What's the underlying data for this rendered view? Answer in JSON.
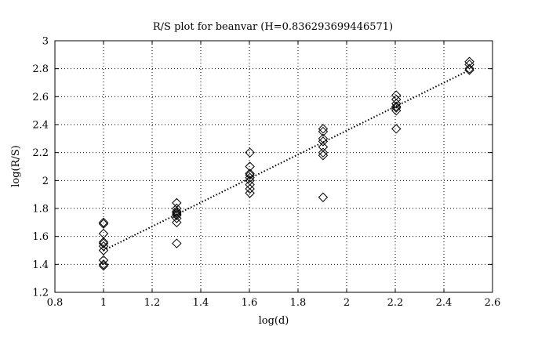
{
  "chart_data": {
    "type": "scatter",
    "title": "R/S plot for beanvar (H=0.836293699446571)",
    "xlabel": "log(d)",
    "ylabel": "log(R/S)",
    "xlim": [
      0.8,
      2.6
    ],
    "ylim": [
      1.2,
      3.0
    ],
    "xticks": [
      "0.8",
      "1",
      "1.2",
      "1.4",
      "1.6",
      "1.8",
      "2",
      "2.2",
      "2.4",
      "2.6"
    ],
    "yticks": [
      "1.2",
      "1.4",
      "1.6",
      "1.8",
      "2",
      "2.2",
      "2.4",
      "2.6",
      "2.8",
      "3"
    ],
    "grid": true,
    "marker": "diamond",
    "series": [
      {
        "points": [
          [
            1.0,
            1.39
          ],
          [
            1.0,
            1.4
          ],
          [
            1.0,
            1.43
          ],
          [
            1.0,
            1.5
          ],
          [
            1.0,
            1.53
          ],
          [
            1.0,
            1.55
          ],
          [
            1.0,
            1.56
          ],
          [
            1.0,
            1.62
          ],
          [
            1.0,
            1.69
          ],
          [
            1.0,
            1.7
          ],
          [
            1.301,
            1.55
          ],
          [
            1.301,
            1.7
          ],
          [
            1.301,
            1.73
          ],
          [
            1.301,
            1.75
          ],
          [
            1.301,
            1.76
          ],
          [
            1.301,
            1.77
          ],
          [
            1.301,
            1.78
          ],
          [
            1.301,
            1.8
          ],
          [
            1.301,
            1.84
          ],
          [
            1.602,
            1.91
          ],
          [
            1.602,
            1.94
          ],
          [
            1.602,
            1.97
          ],
          [
            1.602,
            2.0
          ],
          [
            1.602,
            2.02
          ],
          [
            1.602,
            2.04
          ],
          [
            1.602,
            2.05
          ],
          [
            1.602,
            2.1
          ],
          [
            1.602,
            2.2
          ],
          [
            1.903,
            1.88
          ],
          [
            1.903,
            2.18
          ],
          [
            1.903,
            2.2
          ],
          [
            1.903,
            2.24
          ],
          [
            1.903,
            2.28
          ],
          [
            1.903,
            2.3
          ],
          [
            1.903,
            2.35
          ],
          [
            1.903,
            2.37
          ],
          [
            2.204,
            2.37
          ],
          [
            2.204,
            2.5
          ],
          [
            2.204,
            2.52
          ],
          [
            2.204,
            2.53
          ],
          [
            2.204,
            2.55
          ],
          [
            2.204,
            2.58
          ],
          [
            2.204,
            2.61
          ],
          [
            2.505,
            2.79
          ],
          [
            2.505,
            2.8
          ],
          [
            2.505,
            2.83
          ],
          [
            2.505,
            2.85
          ]
        ]
      }
    ],
    "fit_line": {
      "style": "dotted",
      "x": [
        1.0,
        2.505
      ],
      "y": [
        1.5,
        2.79
      ]
    }
  }
}
